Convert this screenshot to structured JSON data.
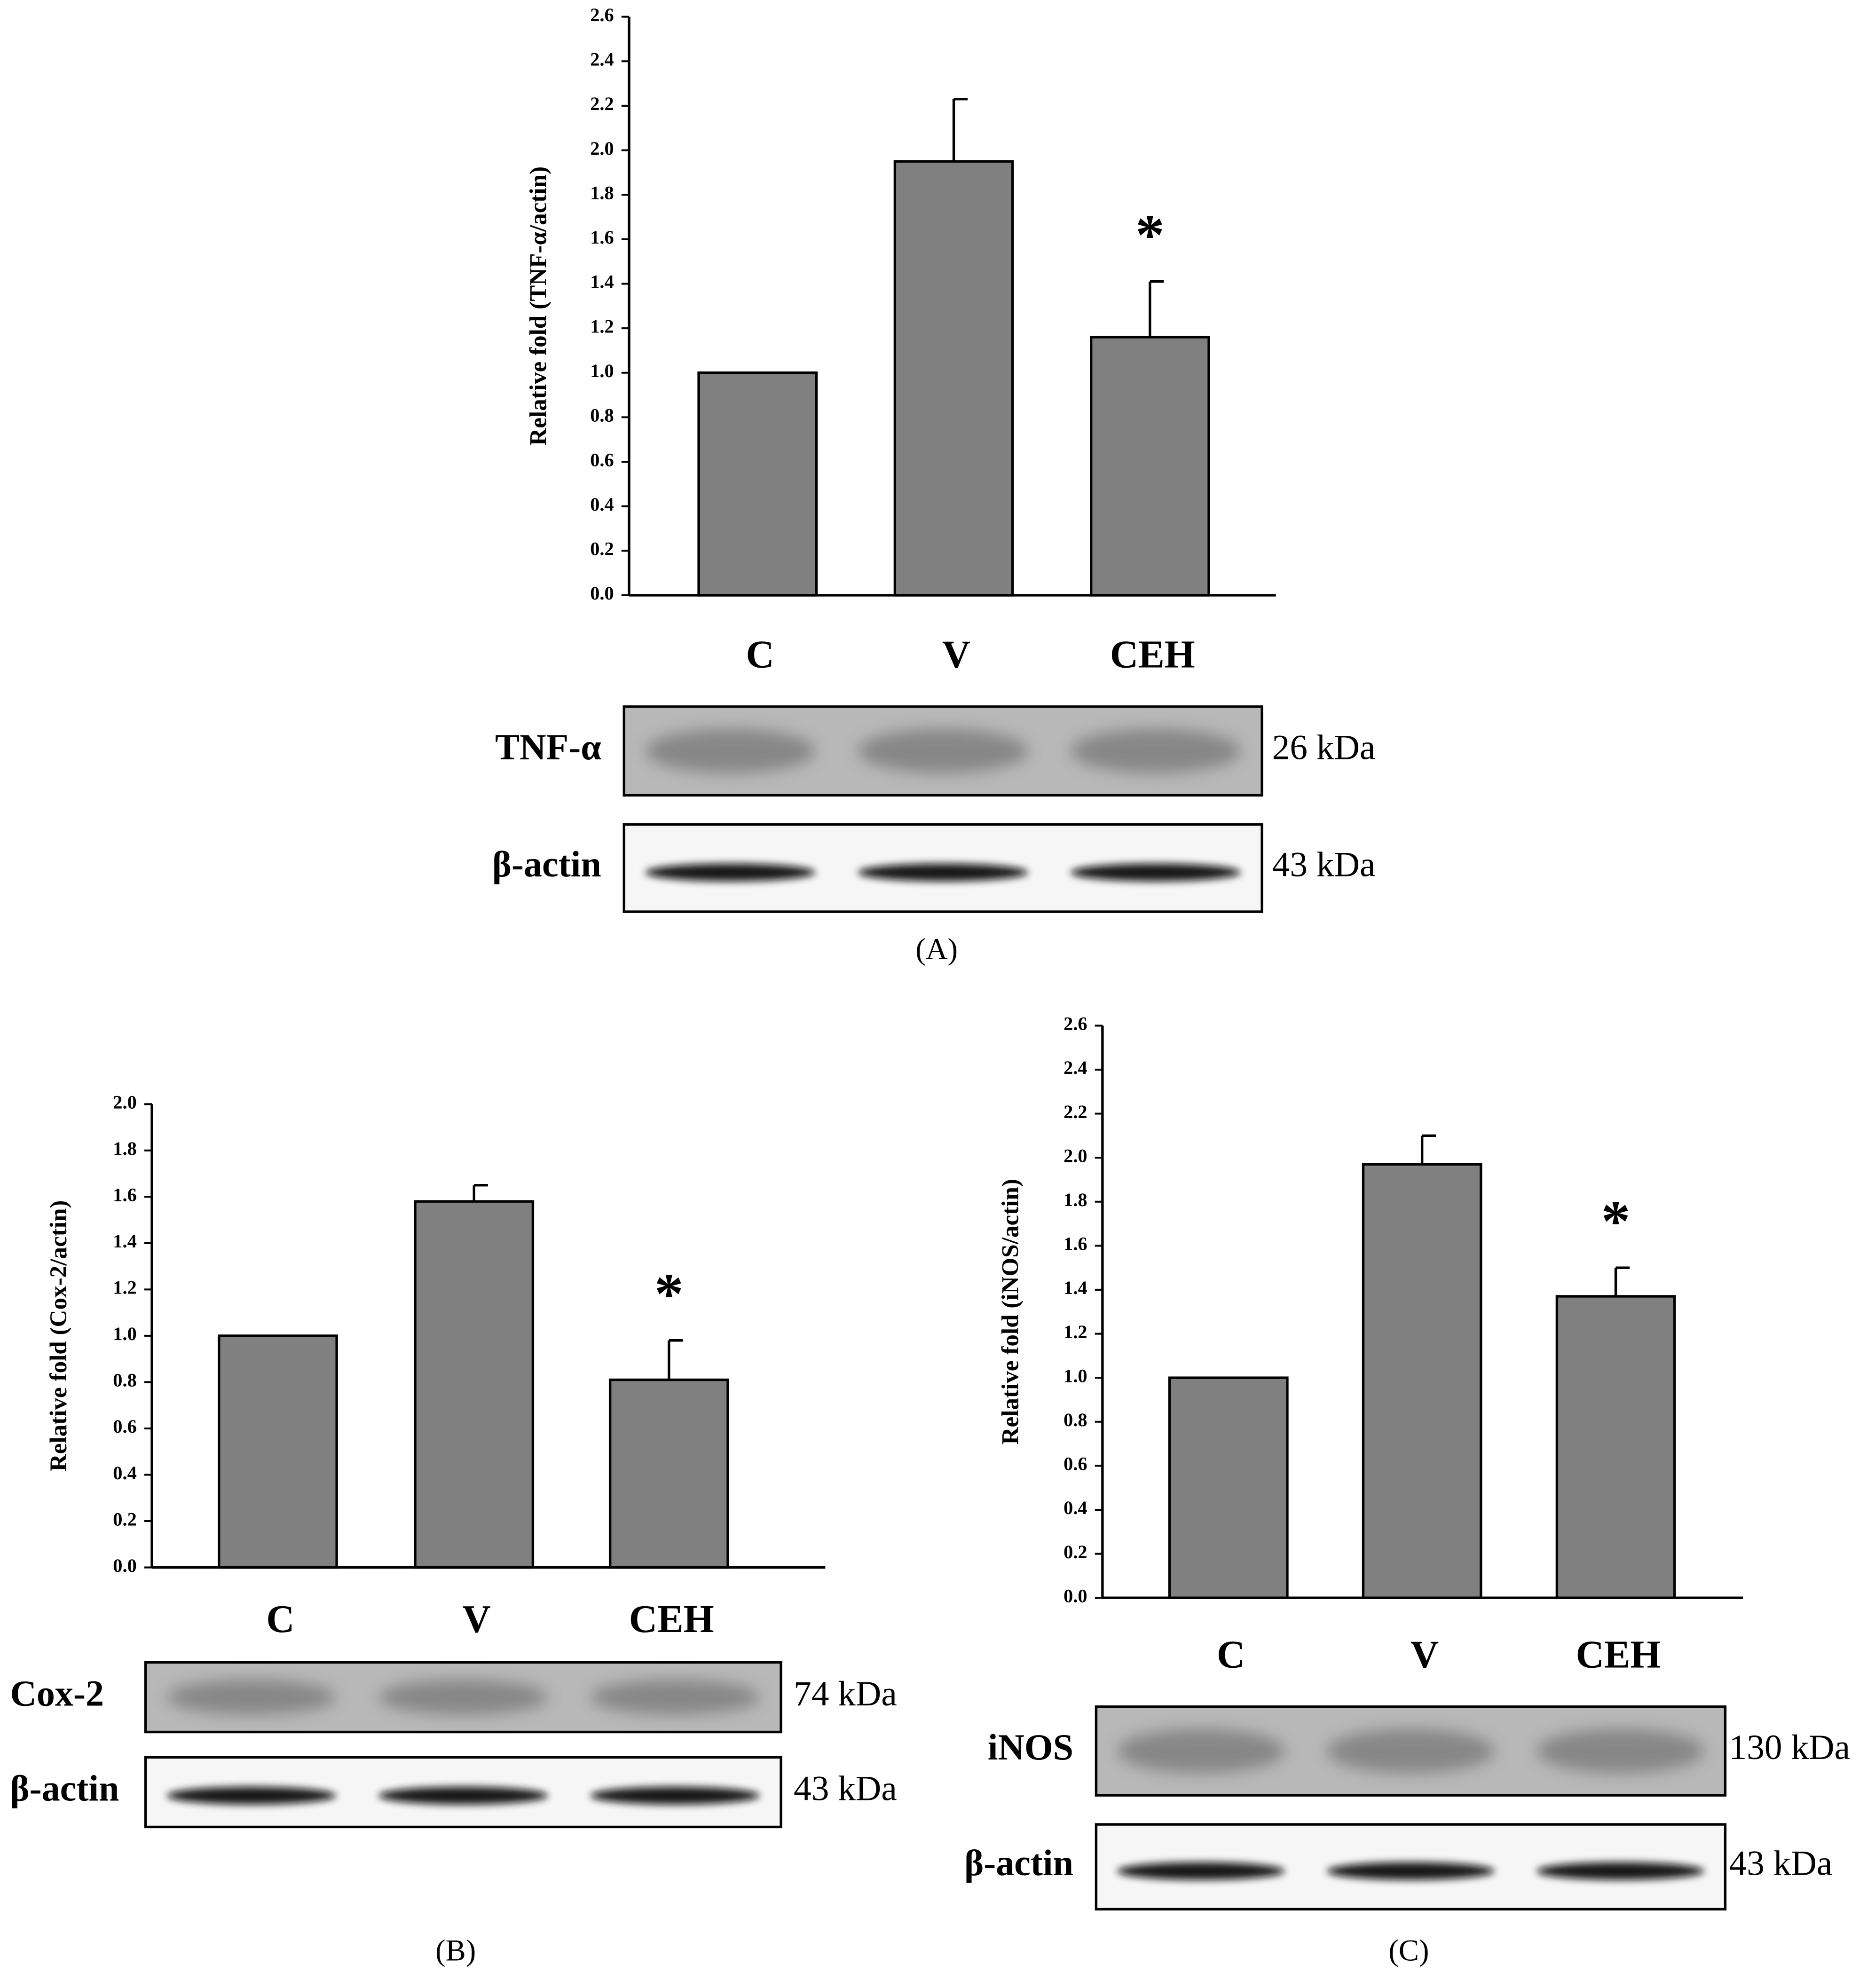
{
  "chart_data": [
    {
      "type": "bar",
      "ylabel": "Relative fold (TNF-α/actin)",
      "categories": [
        "C",
        "V",
        "CEH"
      ],
      "values": [
        1.0,
        1.95,
        1.16
      ],
      "errors": [
        null,
        0.28,
        0.25
      ],
      "color": "#808080",
      "ylim": [
        0,
        2.6
      ],
      "yticks": [
        {
          "value": 0,
          "label": "0.0"
        },
        0.2,
        0.4,
        0.6,
        0.8,
        {
          "value": 1,
          "label": "1.0"
        },
        1.2,
        1.4,
        1.6,
        1.8,
        {
          "value": 2,
          "label": "2.0"
        },
        2.2,
        2.4,
        2.6
      ],
      "annotation": "*",
      "blots": [
        {
          "protein": "TNF-α",
          "size": "26 kDa"
        },
        {
          "protein": "β-actin",
          "size": "43 kDa"
        }
      ],
      "panel_label": "(A)"
    },
    {
      "type": "bar",
      "ylabel": "Relative fold (Cox-2/actin)",
      "categories": [
        "C",
        "V",
        "CEH"
      ],
      "values": [
        1.0,
        1.58,
        0.81
      ],
      "errors": [
        null,
        0.07,
        0.17
      ],
      "color": "#808080",
      "ylim": [
        0,
        2.0
      ],
      "yticks": [
        {
          "value": 0,
          "label": "0.0"
        },
        0.2,
        0.4,
        0.6,
        0.8,
        {
          "value": 1,
          "label": "1.0"
        },
        1.2,
        1.4,
        1.6,
        1.8,
        {
          "value": 2,
          "label": "2.0"
        }
      ],
      "annotation": "*",
      "blots": [
        {
          "protein": "Cox-2",
          "size": "74 kDa"
        },
        {
          "protein": "β-actin",
          "size": "43 kDa"
        }
      ],
      "panel_label": "(B)"
    },
    {
      "type": "bar",
      "ylabel": "Relative fold (iNOS/actin)",
      "categories": [
        "C",
        "V",
        "CEH"
      ],
      "values": [
        1.0,
        1.97,
        1.37
      ],
      "errors": [
        null,
        0.13,
        0.13
      ],
      "color": "#808080",
      "ylim": [
        0,
        2.6
      ],
      "yticks": [
        {
          "value": 0,
          "label": "0.0"
        },
        0.2,
        0.4,
        0.6,
        0.8,
        {
          "value": 1,
          "label": "1.0"
        },
        1.2,
        1.4,
        1.6,
        1.8,
        {
          "value": 2,
          "label": "2.0"
        },
        2.2,
        2.4,
        2.6
      ],
      "annotation": "*",
      "blots": [
        {
          "protein": "iNOS",
          "size": "130 kDa"
        },
        {
          "protein": "β-actin",
          "size": "43 kDa"
        }
      ],
      "panel_label": "(C)"
    }
  ]
}
